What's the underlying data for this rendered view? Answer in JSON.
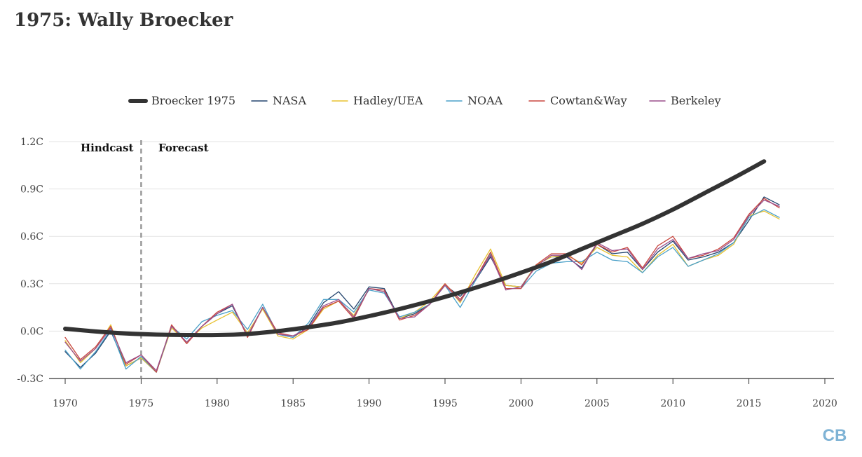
{
  "title": "1975: Wally Broecker",
  "logo_text": "CB",
  "chart_data": {
    "type": "line",
    "xlim": [
      1970,
      2020
    ],
    "ylim": [
      -0.3,
      1.2
    ],
    "x_ticks": [
      1970,
      1975,
      1980,
      1985,
      1990,
      1995,
      2000,
      2005,
      2010,
      2015,
      2020
    ],
    "y_ticks": [
      {
        "value": -0.3,
        "label": "-0.3C"
      },
      {
        "value": 0.0,
        "label": "0.0C"
      },
      {
        "value": 0.3,
        "label": "0.3C"
      },
      {
        "value": 0.6,
        "label": "0.6C"
      },
      {
        "value": 0.9,
        "label": "0.9C"
      },
      {
        "value": 1.2,
        "label": "1.2C"
      }
    ],
    "grid": true,
    "legend_position": "top-center",
    "annotations": {
      "hindcast": "Hindcast",
      "forecast": "Forecast",
      "divider_year": 1975
    },
    "series": [
      {
        "name": "Broecker 1975",
        "color": "#333333",
        "width": 6,
        "x": [
          1970,
          1972,
          1974,
          1976,
          1978,
          1980,
          1982,
          1984,
          1986,
          1988,
          1990,
          1992,
          1994,
          1996,
          1998,
          2000,
          2002,
          2004,
          2006,
          2008,
          2010,
          2012,
          2014,
          2016
        ],
        "y": [
          0.015,
          -0.002,
          -0.015,
          -0.022,
          -0.025,
          -0.025,
          -0.018,
          0.0,
          0.025,
          0.055,
          0.095,
          0.14,
          0.19,
          0.245,
          0.305,
          0.37,
          0.44,
          0.52,
          0.6,
          0.68,
          0.77,
          0.87,
          0.97,
          1.075
        ]
      },
      {
        "name": "NASA",
        "color": "#24456e",
        "width": 1.3,
        "x": [
          1970,
          1971,
          1972,
          1973,
          1974,
          1975,
          1976,
          1977,
          1978,
          1979,
          1980,
          1981,
          1982,
          1983,
          1984,
          1985,
          1986,
          1987,
          1988,
          1989,
          1990,
          1991,
          1992,
          1993,
          1994,
          1995,
          1996,
          1997,
          1998,
          1999,
          2000,
          2001,
          2002,
          2003,
          2004,
          2005,
          2006,
          2007,
          2008,
          2009,
          2010,
          2011,
          2012,
          2013,
          2014,
          2015,
          2016,
          2017
        ],
        "y": [
          -0.13,
          -0.23,
          -0.14,
          0.0,
          -0.22,
          -0.17,
          -0.26,
          0.03,
          -0.07,
          0.03,
          0.11,
          0.16,
          -0.03,
          0.15,
          -0.02,
          -0.04,
          0.03,
          0.18,
          0.25,
          0.14,
          0.28,
          0.27,
          0.08,
          0.11,
          0.17,
          0.29,
          0.22,
          0.32,
          0.47,
          0.29,
          0.28,
          0.42,
          0.47,
          0.47,
          0.4,
          0.55,
          0.49,
          0.5,
          0.39,
          0.5,
          0.57,
          0.45,
          0.47,
          0.5,
          0.56,
          0.7,
          0.85,
          0.8
        ]
      },
      {
        "name": "Hadley/UEA",
        "color": "#e8c12f",
        "width": 1.3,
        "x": [
          1970,
          1971,
          1972,
          1973,
          1974,
          1975,
          1976,
          1977,
          1978,
          1979,
          1980,
          1981,
          1982,
          1983,
          1984,
          1985,
          1986,
          1987,
          1988,
          1989,
          1990,
          1991,
          1992,
          1993,
          1994,
          1995,
          1996,
          1997,
          1998,
          1999,
          2000,
          2001,
          2002,
          2003,
          2004,
          2005,
          2006,
          2007,
          2008,
          2009,
          2010,
          2011,
          2012,
          2013,
          2014,
          2015,
          2016,
          2017
        ],
        "y": [
          -0.06,
          -0.2,
          -0.11,
          0.04,
          -0.22,
          -0.17,
          -0.26,
          0.02,
          -0.07,
          0.02,
          0.07,
          0.12,
          -0.01,
          0.14,
          -0.03,
          -0.05,
          0.01,
          0.14,
          0.19,
          0.1,
          0.27,
          0.25,
          0.08,
          0.12,
          0.19,
          0.3,
          0.18,
          0.36,
          0.52,
          0.29,
          0.28,
          0.42,
          0.47,
          0.48,
          0.43,
          0.53,
          0.48,
          0.47,
          0.37,
          0.48,
          0.55,
          0.41,
          0.45,
          0.48,
          0.55,
          0.73,
          0.76,
          0.71
        ]
      },
      {
        "name": "NOAA",
        "color": "#4aa0c8",
        "width": 1.3,
        "x": [
          1970,
          1971,
          1972,
          1973,
          1974,
          1975,
          1976,
          1977,
          1978,
          1979,
          1980,
          1981,
          1982,
          1983,
          1984,
          1985,
          1986,
          1987,
          1988,
          1989,
          1990,
          1991,
          1992,
          1993,
          1994,
          1995,
          1996,
          1997,
          1998,
          1999,
          2000,
          2001,
          2002,
          2003,
          2004,
          2005,
          2006,
          2007,
          2008,
          2009,
          2010,
          2011,
          2012,
          2013,
          2014,
          2015,
          2016,
          2017
        ],
        "y": [
          -0.12,
          -0.24,
          -0.13,
          0.01,
          -0.24,
          -0.16,
          -0.26,
          0.03,
          -0.05,
          0.06,
          0.1,
          0.13,
          0.01,
          0.17,
          -0.02,
          -0.04,
          0.05,
          0.2,
          0.2,
          0.12,
          0.26,
          0.24,
          0.09,
          0.12,
          0.17,
          0.29,
          0.15,
          0.32,
          0.49,
          0.27,
          0.27,
          0.38,
          0.43,
          0.44,
          0.44,
          0.5,
          0.45,
          0.44,
          0.37,
          0.47,
          0.53,
          0.41,
          0.45,
          0.49,
          0.56,
          0.72,
          0.77,
          0.72
        ]
      },
      {
        "name": "Cowtan&Way",
        "color": "#c9473f",
        "width": 1.3,
        "x": [
          1970,
          1971,
          1972,
          1973,
          1974,
          1975,
          1976,
          1977,
          1978,
          1979,
          1980,
          1981,
          1982,
          1983,
          1984,
          1985,
          1986,
          1987,
          1988,
          1989,
          1990,
          1991,
          1992,
          1993,
          1994,
          1995,
          1996,
          1997,
          1998,
          1999,
          2000,
          2001,
          2002,
          2003,
          2004,
          2005,
          2006,
          2007,
          2008,
          2009,
          2010,
          2011,
          2012,
          2013,
          2014,
          2015,
          2016,
          2017
        ],
        "y": [
          -0.04,
          -0.18,
          -0.1,
          0.03,
          -0.21,
          -0.15,
          -0.26,
          0.04,
          -0.08,
          0.03,
          0.12,
          0.17,
          -0.04,
          0.15,
          -0.01,
          -0.03,
          0.01,
          0.15,
          0.19,
          0.08,
          0.27,
          0.26,
          0.07,
          0.1,
          0.17,
          0.3,
          0.2,
          0.33,
          0.5,
          0.27,
          0.27,
          0.42,
          0.49,
          0.49,
          0.42,
          0.55,
          0.5,
          0.53,
          0.4,
          0.54,
          0.6,
          0.46,
          0.48,
          0.52,
          0.59,
          0.74,
          0.84,
          0.78
        ]
      },
      {
        "name": "Berkeley",
        "color": "#9a4f8c",
        "width": 1.3,
        "x": [
          1970,
          1971,
          1972,
          1973,
          1974,
          1975,
          1976,
          1977,
          1978,
          1979,
          1980,
          1981,
          1982,
          1983,
          1984,
          1985,
          1986,
          1987,
          1988,
          1989,
          1990,
          1991,
          1992,
          1993,
          1994,
          1995,
          1996,
          1997,
          1998,
          1999,
          2000,
          2001,
          2002,
          2003,
          2004,
          2005,
          2006,
          2007,
          2008,
          2009,
          2010,
          2011,
          2012,
          2013,
          2014,
          2015,
          2016,
          2017
        ],
        "y": [
          -0.07,
          -0.19,
          -0.11,
          0.02,
          -0.2,
          -0.15,
          -0.25,
          0.03,
          -0.07,
          0.03,
          0.11,
          0.17,
          -0.03,
          0.15,
          -0.02,
          -0.03,
          0.02,
          0.16,
          0.2,
          0.09,
          0.27,
          0.25,
          0.08,
          0.09,
          0.17,
          0.29,
          0.19,
          0.33,
          0.48,
          0.26,
          0.28,
          0.41,
          0.48,
          0.48,
          0.39,
          0.56,
          0.51,
          0.52,
          0.39,
          0.52,
          0.58,
          0.46,
          0.49,
          0.51,
          0.58,
          0.73,
          0.83,
          0.79
        ]
      }
    ]
  }
}
